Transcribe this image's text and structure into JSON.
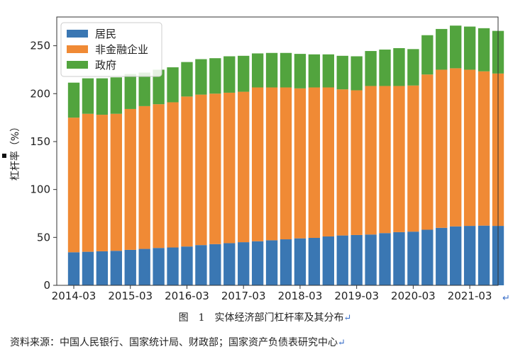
{
  "chart_data": {
    "type": "bar",
    "stacked": true,
    "ylabel": "杠杆率（%）",
    "ylim": [
      0,
      280
    ],
    "yticks": [
      0,
      50,
      100,
      150,
      200,
      250
    ],
    "xtick_labels": [
      "2014-03",
      "2015-03",
      "2016-03",
      "2017-03",
      "2018-03",
      "2019-03",
      "2020-03",
      "2021-03"
    ],
    "xtick_index": [
      0,
      4,
      8,
      12,
      16,
      20,
      24,
      28
    ],
    "legend_position": "top-left",
    "series": [
      {
        "name": "居民",
        "color": "#3a77b3",
        "values": [
          34.5,
          35,
          35.5,
          36,
          37,
          38,
          39,
          39.5,
          40.5,
          42,
          43,
          44,
          45,
          46,
          47,
          48,
          49,
          49.5,
          51,
          52,
          52.5,
          53,
          54.5,
          55.5,
          56,
          58,
          60,
          61.5,
          62,
          62.3,
          62
        ]
      },
      {
        "name": "非金融企业",
        "color": "#f08a35",
        "values": [
          140.5,
          144,
          142.5,
          143,
          147,
          149,
          150,
          151.5,
          156.5,
          157,
          157,
          157,
          157,
          160.5,
          159.5,
          158.5,
          156.5,
          157,
          155.5,
          152.5,
          151,
          155,
          153.5,
          152.5,
          152.5,
          162,
          165,
          165,
          163,
          161,
          159
        ]
      },
      {
        "name": "政府",
        "color": "#52a43e",
        "values": [
          36.5,
          37,
          38,
          38,
          36.5,
          35,
          36,
          36.5,
          36,
          37,
          37,
          38,
          37.5,
          35.5,
          36,
          36,
          36,
          34.5,
          34.5,
          35,
          35.5,
          36.5,
          38,
          39.5,
          38,
          41,
          42.5,
          44.5,
          45,
          45,
          44.5
        ]
      }
    ]
  },
  "caption": {
    "fig_num": "图　1",
    "title": "实体经济部门杠杆率及其分布"
  },
  "source": "资料来源：中国人民银行、国家统计局、财政部；国家资产负债表研究中心",
  "return_mark": "↵"
}
